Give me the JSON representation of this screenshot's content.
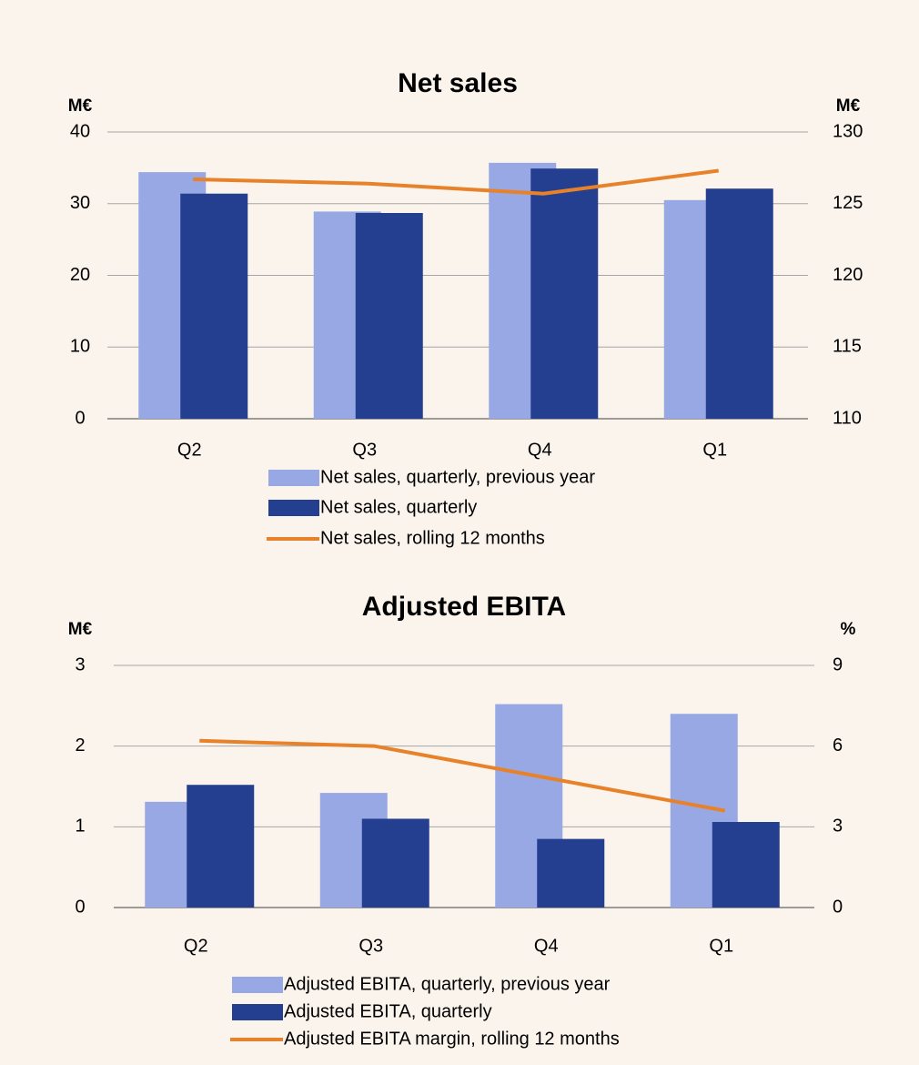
{
  "chart_data": [
    {
      "type": "bar",
      "title": "Net sales",
      "y_label": "M€",
      "y2_label": "M€",
      "categories": [
        "Q2",
        "Q3",
        "Q4",
        "Q1"
      ],
      "series": [
        {
          "name": "Net sales, quarterly, previous year",
          "color": "#98a8e4",
          "values": [
            34.4,
            28.9,
            35.7,
            30.5
          ]
        },
        {
          "name": "Net sales, quarterly",
          "color": "#243f8f",
          "values": [
            31.4,
            28.7,
            34.9,
            32.1
          ]
        },
        {
          "name": "Net sales, rolling 12 months",
          "color": "#e8822a",
          "type": "line",
          "axis": "y2",
          "values": [
            126.7,
            126.4,
            125.7,
            127.3
          ]
        }
      ],
      "ylim": [
        0,
        40
      ],
      "yticks": [
        0,
        10,
        20,
        30,
        40
      ],
      "y2lim": [
        110,
        130
      ],
      "y2ticks": [
        110,
        115,
        120,
        125,
        130
      ],
      "grid": true
    },
    {
      "type": "bar",
      "title": "Adjusted EBITA",
      "y_label": "M€",
      "y2_label": "%",
      "categories": [
        "Q2",
        "Q3",
        "Q4",
        "Q1"
      ],
      "series": [
        {
          "name": "Adjusted EBITA, quarterly, previous year",
          "color": "#98a8e4",
          "values": [
            1.31,
            1.42,
            2.52,
            2.4
          ]
        },
        {
          "name": "Adjusted EBITA, quarterly",
          "color": "#243f8f",
          "values": [
            1.52,
            1.1,
            0.85,
            1.06
          ]
        },
        {
          "name": "Adjusted EBITA margin, rolling 12 months",
          "color": "#e8822a",
          "type": "line",
          "axis": "y2",
          "values": [
            6.2,
            6.0,
            4.8,
            3.6
          ]
        }
      ],
      "ylim": [
        0,
        3
      ],
      "yticks": [
        0,
        1,
        2,
        3
      ],
      "y2lim": [
        0,
        9
      ],
      "y2ticks": [
        0,
        3,
        6,
        9
      ],
      "grid": true
    }
  ]
}
